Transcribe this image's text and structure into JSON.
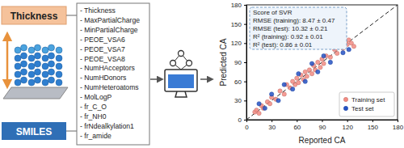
{
  "inputs": {
    "thickness": "Thickness",
    "smiles": "SMILES"
  },
  "features": [
    "- Thickness",
    "- MaxPartialCharge",
    "- MinPartialCharge",
    "- PEOE_VSA6",
    "- PEOE_VSA7",
    "- PEOE_VSA8",
    "- NumHAcceptors",
    "- NumHDonors",
    "- NumHeteroatoms",
    "- MolLogP",
    "- fr_C_O",
    "- fr_NH0",
    "- frNdealkylation1",
    "- fr_amide"
  ],
  "chart_data": {
    "type": "scatter",
    "x_label": "Reported CA",
    "y_label": "Predicted CA",
    "xlim": [
      0,
      180
    ],
    "ylim": [
      0,
      180
    ],
    "xticks": [
      0,
      30,
      60,
      90,
      120,
      150,
      180
    ],
    "yticks": [
      0,
      30,
      60,
      90,
      120,
      150,
      180
    ],
    "annotation": {
      "title": "Score of SVR",
      "lines": [
        "RMSE (training): 8.47 ± 0.47",
        "RMSE (test): 10.32 ± 0.21",
        "R² (training): 0.92 ± 0.01",
        "R² (test): 0.86 ± 0.01"
      ]
    },
    "legend": "lower right",
    "series": [
      {
        "name": "Training set",
        "color": "#f28b82",
        "marker": "circle",
        "x": [
          10,
          12,
          15,
          18,
          20,
          25,
          28,
          30,
          35,
          40,
          45,
          48,
          52,
          55,
          58,
          60,
          62,
          65,
          68,
          70,
          72,
          75,
          78,
          80,
          82,
          85,
          88,
          90,
          92,
          95,
          100,
          105,
          108,
          110,
          115,
          118,
          120,
          122,
          125,
          128
        ],
        "values": [
          12,
          15,
          10,
          22,
          18,
          28,
          25,
          35,
          32,
          45,
          40,
          55,
          50,
          60,
          55,
          65,
          58,
          70,
          63,
          75,
          68,
          78,
          72,
          85,
          78,
          90,
          82,
          95,
          88,
          100,
          98,
          110,
          104,
          115,
          112,
          120,
          118,
          125,
          120,
          115
        ]
      },
      {
        "name": "Test set",
        "color": "#2452c4",
        "marker": "circle",
        "x": [
          15,
          22,
          30,
          38,
          45,
          55,
          62,
          70,
          78,
          85,
          92,
          100,
          108,
          115,
          122
        ],
        "values": [
          25,
          18,
          40,
          30,
          55,
          48,
          72,
          60,
          88,
          75,
          100,
          90,
          118,
          105,
          110
        ]
      }
    ]
  }
}
